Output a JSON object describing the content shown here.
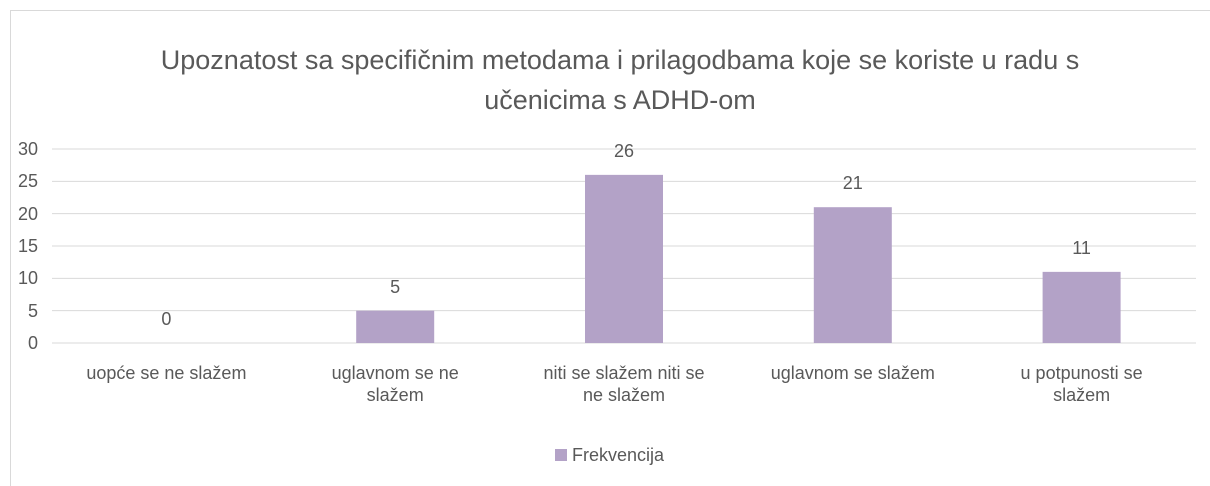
{
  "chart_data": {
    "type": "bar",
    "title": "Upoznatost sa specifičnim metodama i prilagodbama koje se koriste u radu s učenicima s ADHD-om",
    "categories": [
      "uopće se ne slažem",
      "uglavnom se ne slažem",
      "niti se slažem niti se ne slažem",
      "uglavnom se slažem",
      "u potpunosti se slažem"
    ],
    "series": [
      {
        "name": "Frekvencija",
        "color": "#b3a2c7",
        "values": [
          0,
          5,
          26,
          21,
          11
        ]
      }
    ],
    "ylim": [
      0,
      30
    ],
    "yticks": [
      0,
      5,
      10,
      15,
      20,
      25,
      30
    ],
    "grid": true,
    "legend": "bottom"
  }
}
